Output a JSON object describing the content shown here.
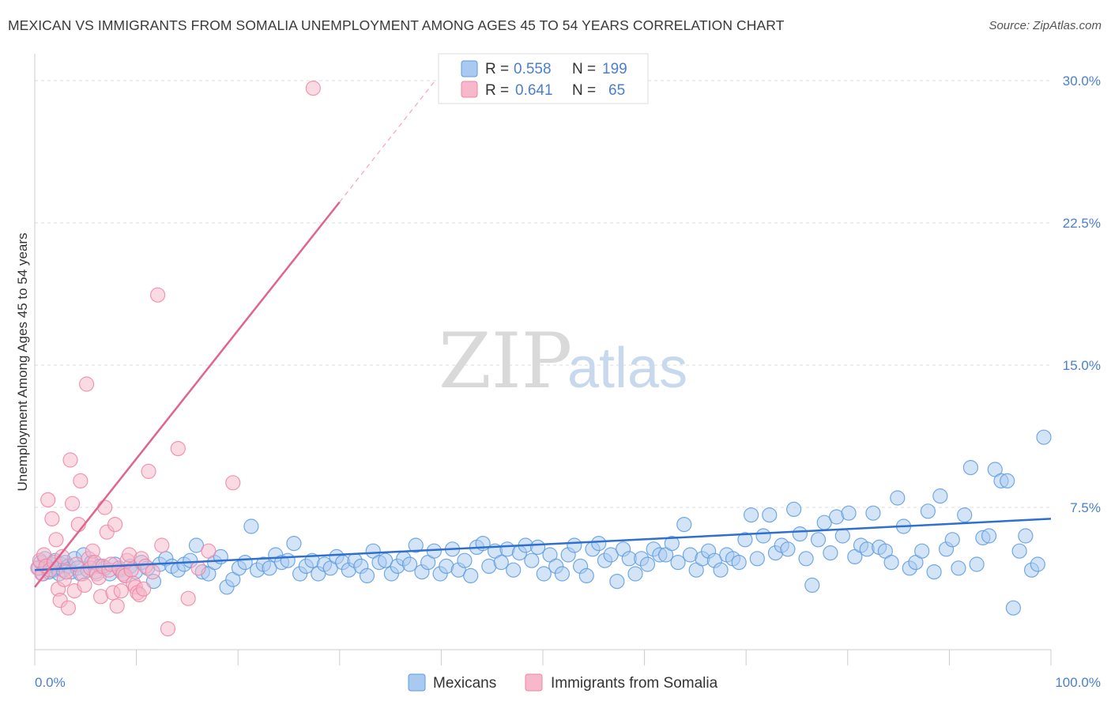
{
  "title": "MEXICAN VS IMMIGRANTS FROM SOMALIA UNEMPLOYMENT AMONG AGES 45 TO 54 YEARS CORRELATION CHART",
  "source": "Source: ZipAtlas.com",
  "watermark": {
    "zip": "ZIP",
    "atlas": "atlas"
  },
  "colors": {
    "blue": "#5b9be0",
    "blue_fill": "#a9c9f0",
    "blue_line": "#2e6fd0",
    "pink": "#ef85a5",
    "pink_fill": "#f6b8ca",
    "pink_line": "#e0648c",
    "label_blue": "#4a7fcf",
    "grid": "#dddddd"
  },
  "legend_top": {
    "rows": [
      {
        "r_label": "R =",
        "r_value": "0.558",
        "n_label": "N =",
        "n_value": "199",
        "color": "#a9c9f0"
      },
      {
        "r_label": "R =",
        "r_value": "0.641",
        "n_label": "N =",
        "n_value": "65",
        "color": "#f6b8ca"
      }
    ]
  },
  "legend_bottom": {
    "items": [
      {
        "label": "Mexicans",
        "color": "#a9c9f0"
      },
      {
        "label": "Immigrants from Somalia",
        "color": "#f6b8ca"
      }
    ]
  },
  "chart_data": {
    "type": "scatter",
    "xlabel": "",
    "ylabel": "Unemployment Among Ages 45 to 54 years",
    "xlim": [
      0,
      100
    ],
    "ylim": [
      0,
      31
    ],
    "x_tick_labels": [
      {
        "value": 0,
        "label": "0.0%"
      },
      {
        "value": 100,
        "label": "100.0%"
      }
    ],
    "y_ticks": [
      {
        "value": 7.5,
        "label": "7.5%"
      },
      {
        "value": 15,
        "label": "15.0%"
      },
      {
        "value": 22.5,
        "label": "22.5%"
      },
      {
        "value": 30,
        "label": "30.0%"
      }
    ],
    "series": [
      {
        "name": "Mexicans",
        "R": 0.558,
        "N": 199,
        "trend": {
          "x": [
            0,
            100
          ],
          "y": [
            4.2,
            6.9
          ],
          "style": "solid"
        },
        "points": [
          [
            0.4,
            4.3
          ],
          [
            0.6,
            4.6
          ],
          [
            0.8,
            4.0
          ],
          [
            1.0,
            4.8
          ],
          [
            1.2,
            4.4
          ],
          [
            1.4,
            4.1
          ],
          [
            1.6,
            4.5
          ],
          [
            1.8,
            4.2
          ],
          [
            2.0,
            4.7
          ],
          [
            2.2,
            4.3
          ],
          [
            2.4,
            4.0
          ],
          [
            2.6,
            4.5
          ],
          [
            2.8,
            4.2
          ],
          [
            3.0,
            4.6
          ],
          [
            3.3,
            4.4
          ],
          [
            3.6,
            4.1
          ],
          [
            3.9,
            4.8
          ],
          [
            4.2,
            4.3
          ],
          [
            4.5,
            4.0
          ],
          [
            4.8,
            5.0
          ],
          [
            5.2,
            4.2
          ],
          [
            5.6,
            4.6
          ],
          [
            6.0,
            4.1
          ],
          [
            6.4,
            4.4
          ],
          [
            6.9,
            4.3
          ],
          [
            7.4,
            4.0
          ],
          [
            7.9,
            4.5
          ],
          [
            8.4,
            4.2
          ],
          [
            8.9,
            3.9
          ],
          [
            9.4,
            4.4
          ],
          [
            9.9,
            4.1
          ],
          [
            10.5,
            4.6
          ],
          [
            11.1,
            4.3
          ],
          [
            11.7,
            3.6
          ],
          [
            12.3,
            4.5
          ],
          [
            12.9,
            4.8
          ],
          [
            13.5,
            4.4
          ],
          [
            14.1,
            4.2
          ],
          [
            14.7,
            4.5
          ],
          [
            15.3,
            4.7
          ],
          [
            15.9,
            5.5
          ],
          [
            16.5,
            4.1
          ],
          [
            17.1,
            4.0
          ],
          [
            17.7,
            4.6
          ],
          [
            18.3,
            4.9
          ],
          [
            18.9,
            3.3
          ],
          [
            19.5,
            3.7
          ],
          [
            20.1,
            4.3
          ],
          [
            20.7,
            4.6
          ],
          [
            21.3,
            6.5
          ],
          [
            21.9,
            4.2
          ],
          [
            22.5,
            4.5
          ],
          [
            23.1,
            4.3
          ],
          [
            23.7,
            5.0
          ],
          [
            24.3,
            4.6
          ],
          [
            24.9,
            4.7
          ],
          [
            25.5,
            5.6
          ],
          [
            26.1,
            4.0
          ],
          [
            26.7,
            4.4
          ],
          [
            27.3,
            4.7
          ],
          [
            27.9,
            4.0
          ],
          [
            28.5,
            4.5
          ],
          [
            29.1,
            4.3
          ],
          [
            29.7,
            4.9
          ],
          [
            30.3,
            4.6
          ],
          [
            30.9,
            4.2
          ],
          [
            31.5,
            4.7
          ],
          [
            32.1,
            4.4
          ],
          [
            32.7,
            3.9
          ],
          [
            33.3,
            5.2
          ],
          [
            33.9,
            4.6
          ],
          [
            34.5,
            4.7
          ],
          [
            35.1,
            4.0
          ],
          [
            35.7,
            4.4
          ],
          [
            36.3,
            4.8
          ],
          [
            36.9,
            4.5
          ],
          [
            37.5,
            5.5
          ],
          [
            38.1,
            4.1
          ],
          [
            38.7,
            4.6
          ],
          [
            39.3,
            5.2
          ],
          [
            39.9,
            4.0
          ],
          [
            40.5,
            4.4
          ],
          [
            41.1,
            5.3
          ],
          [
            41.7,
            4.2
          ],
          [
            42.3,
            4.7
          ],
          [
            42.9,
            3.9
          ],
          [
            43.5,
            5.4
          ],
          [
            44.1,
            5.6
          ],
          [
            44.7,
            4.4
          ],
          [
            45.3,
            5.2
          ],
          [
            45.9,
            4.6
          ],
          [
            46.5,
            5.3
          ],
          [
            47.1,
            4.2
          ],
          [
            47.7,
            5.1
          ],
          [
            48.3,
            5.5
          ],
          [
            48.9,
            4.7
          ],
          [
            49.5,
            5.4
          ],
          [
            50.1,
            4.0
          ],
          [
            50.7,
            5.0
          ],
          [
            51.3,
            4.4
          ],
          [
            51.9,
            4.0
          ],
          [
            52.5,
            5.0
          ],
          [
            53.1,
            5.5
          ],
          [
            53.7,
            4.4
          ],
          [
            54.3,
            3.9
          ],
          [
            54.9,
            5.3
          ],
          [
            55.5,
            5.6
          ],
          [
            56.1,
            4.7
          ],
          [
            56.7,
            5.0
          ],
          [
            57.3,
            3.6
          ],
          [
            57.9,
            5.3
          ],
          [
            58.5,
            4.8
          ],
          [
            59.1,
            4.0
          ],
          [
            59.7,
            4.8
          ],
          [
            60.3,
            4.5
          ],
          [
            60.9,
            5.3
          ],
          [
            61.5,
            5.0
          ],
          [
            62.1,
            5.0
          ],
          [
            62.7,
            5.6
          ],
          [
            63.3,
            4.6
          ],
          [
            63.9,
            6.6
          ],
          [
            64.5,
            5.0
          ],
          [
            65.1,
            4.2
          ],
          [
            65.7,
            4.8
          ],
          [
            66.3,
            5.2
          ],
          [
            66.9,
            4.7
          ],
          [
            67.5,
            4.2
          ],
          [
            68.1,
            5.0
          ],
          [
            68.7,
            4.8
          ],
          [
            69.3,
            4.6
          ],
          [
            69.9,
            5.8
          ],
          [
            70.5,
            7.1
          ],
          [
            71.1,
            4.8
          ],
          [
            71.7,
            6.0
          ],
          [
            72.3,
            7.1
          ],
          [
            72.9,
            5.1
          ],
          [
            73.5,
            5.5
          ],
          [
            74.1,
            5.3
          ],
          [
            74.7,
            7.4
          ],
          [
            75.3,
            6.1
          ],
          [
            75.9,
            4.8
          ],
          [
            76.5,
            3.4
          ],
          [
            77.1,
            5.8
          ],
          [
            77.7,
            6.7
          ],
          [
            78.3,
            5.1
          ],
          [
            78.9,
            7.0
          ],
          [
            79.5,
            6.0
          ],
          [
            80.1,
            7.2
          ],
          [
            80.7,
            4.9
          ],
          [
            81.3,
            5.5
          ],
          [
            81.9,
            5.3
          ],
          [
            82.5,
            7.2
          ],
          [
            83.1,
            5.4
          ],
          [
            83.7,
            5.2
          ],
          [
            84.3,
            4.6
          ],
          [
            84.9,
            8.0
          ],
          [
            85.5,
            6.5
          ],
          [
            86.1,
            4.3
          ],
          [
            86.7,
            4.6
          ],
          [
            87.3,
            5.2
          ],
          [
            87.9,
            7.3
          ],
          [
            88.5,
            4.1
          ],
          [
            89.1,
            8.1
          ],
          [
            89.7,
            5.3
          ],
          [
            90.3,
            5.8
          ],
          [
            90.9,
            4.3
          ],
          [
            91.5,
            7.1
          ],
          [
            92.1,
            9.6
          ],
          [
            92.7,
            4.5
          ],
          [
            93.3,
            5.9
          ],
          [
            93.9,
            6.0
          ],
          [
            94.5,
            9.5
          ],
          [
            95.1,
            8.9
          ],
          [
            95.7,
            8.9
          ],
          [
            96.3,
            2.2
          ],
          [
            96.9,
            5.2
          ],
          [
            97.5,
            6.0
          ],
          [
            98.1,
            4.2
          ],
          [
            98.7,
            4.5
          ],
          [
            99.3,
            11.2
          ]
        ]
      },
      {
        "name": "Immigrants from Somalia",
        "R": 0.641,
        "N": 65,
        "trend": {
          "x": [
            0,
            30
          ],
          "y": [
            3.3,
            23.6
          ],
          "style": "solid",
          "extension": {
            "x": [
              30,
              39.4
            ],
            "y": [
              23.6,
              30.0
            ],
            "style": "dashed"
          }
        },
        "points": [
          [
            0.3,
            4.3
          ],
          [
            0.5,
            4.7
          ],
          [
            0.7,
            4.0
          ],
          [
            0.9,
            5.0
          ],
          [
            1.1,
            4.4
          ],
          [
            1.3,
            7.9
          ],
          [
            1.5,
            4.2
          ],
          [
            1.7,
            6.9
          ],
          [
            1.9,
            4.6
          ],
          [
            2.1,
            5.8
          ],
          [
            2.3,
            3.2
          ],
          [
            2.5,
            2.6
          ],
          [
            2.7,
            4.9
          ],
          [
            2.9,
            3.7
          ],
          [
            3.1,
            4.1
          ],
          [
            3.3,
            2.2
          ],
          [
            3.5,
            10.0
          ],
          [
            3.7,
            7.7
          ],
          [
            3.9,
            3.1
          ],
          [
            4.1,
            4.5
          ],
          [
            4.3,
            6.6
          ],
          [
            4.5,
            8.9
          ],
          [
            4.7,
            4.0
          ],
          [
            4.9,
            3.4
          ],
          [
            5.1,
            14.0
          ],
          [
            5.3,
            4.8
          ],
          [
            5.5,
            4.3
          ],
          [
            5.7,
            5.2
          ],
          [
            5.9,
            4.6
          ],
          [
            6.1,
            4.0
          ],
          [
            6.3,
            3.8
          ],
          [
            6.5,
            2.8
          ],
          [
            6.7,
            4.4
          ],
          [
            6.9,
            7.5
          ],
          [
            7.1,
            6.2
          ],
          [
            7.3,
            4.2
          ],
          [
            7.5,
            4.5
          ],
          [
            7.7,
            3.0
          ],
          [
            7.9,
            6.6
          ],
          [
            8.1,
            2.3
          ],
          [
            8.3,
            4.3
          ],
          [
            8.5,
            3.1
          ],
          [
            8.7,
            4.0
          ],
          [
            8.9,
            3.9
          ],
          [
            9.1,
            4.7
          ],
          [
            9.3,
            5.0
          ],
          [
            9.5,
            4.2
          ],
          [
            9.7,
            3.5
          ],
          [
            9.9,
            3.3
          ],
          [
            10.1,
            3.0
          ],
          [
            10.3,
            2.9
          ],
          [
            10.5,
            4.8
          ],
          [
            10.7,
            3.2
          ],
          [
            10.9,
            4.4
          ],
          [
            11.2,
            9.4
          ],
          [
            11.6,
            4.1
          ],
          [
            12.1,
            18.7
          ],
          [
            12.5,
            5.5
          ],
          [
            13.1,
            1.1
          ],
          [
            14.1,
            10.6
          ],
          [
            15.1,
            2.7
          ],
          [
            16.1,
            4.3
          ],
          [
            17.1,
            5.2
          ],
          [
            19.5,
            8.8
          ],
          [
            27.4,
            29.6
          ]
        ]
      }
    ]
  }
}
